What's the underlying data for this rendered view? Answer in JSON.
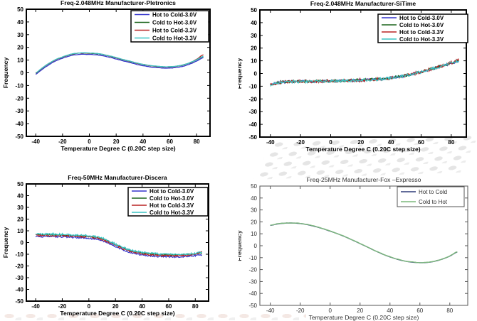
{
  "chart_data": [
    {
      "type": "line",
      "title": "Freq-2.048MHz  Manufacturer-Pletronics",
      "xlabel": "Temperature Degree C (0.20C step size)",
      "ylabel": "Frequency",
      "xlim": [
        -47,
        90
      ],
      "ylim": [
        -50,
        50
      ],
      "xticks": [
        -40,
        -20,
        0,
        20,
        40,
        60,
        80
      ],
      "yticks": [
        -50,
        -40,
        -30,
        -20,
        -10,
        0,
        10,
        20,
        30,
        40,
        50
      ],
      "grid": false,
      "legend_position": "upper-right-inside",
      "style": {
        "axis_color": "#000000",
        "axis_width": 2,
        "text_color": "#000000",
        "bold": true,
        "line_width": 1.3,
        "sample_step": 1,
        "legend_border": 1.5
      },
      "x": [
        -40,
        -35,
        -30,
        -25,
        -20,
        -15,
        -10,
        -5,
        0,
        5,
        10,
        15,
        20,
        25,
        30,
        35,
        40,
        45,
        50,
        55,
        60,
        65,
        70,
        75,
        80,
        85
      ],
      "series": [
        {
          "name": "Hot to Cold-3.0V",
          "color": "#3434cc",
          "noise": 0.12,
          "y": [
            -1.1,
            2.9,
            6.4,
            9.4,
            11.4,
            13.2,
            14.2,
            14.6,
            14.4,
            14.2,
            13.4,
            12.2,
            10.9,
            9.4,
            8.1,
            6.7,
            5.6,
            4.7,
            4.1,
            3.7,
            3.7,
            4.2,
            5.2,
            6.9,
            9.2,
            11.9
          ]
        },
        {
          "name": "Cold to Hot-3.0V",
          "color": "#1e661e",
          "noise": 0.12,
          "y": [
            -0.2,
            3.8,
            7.3,
            10.3,
            12.3,
            14.1,
            15.1,
            15.5,
            15.3,
            15.1,
            14.3,
            13.1,
            11.8,
            10.3,
            9.0,
            7.6,
            6.5,
            5.6,
            5.0,
            4.6,
            4.6,
            5.1,
            6.1,
            7.8,
            10.1,
            12.8
          ]
        },
        {
          "name": "Hot to Cold-3.3V",
          "color": "#b82222",
          "noise": 0.12,
          "y": [
            -0.1,
            3.9,
            7.4,
            10.4,
            12.4,
            14.2,
            15.2,
            15.6,
            15.4,
            15.2,
            14.4,
            13.2,
            11.9,
            10.4,
            9.1,
            7.7,
            6.6,
            5.7,
            5.1,
            4.7,
            4.7,
            5.2,
            6.2,
            7.9,
            10.6,
            14.2
          ]
        },
        {
          "name": "Cold to Hot-3.3V",
          "color": "#38c4c4",
          "noise": 0.12,
          "y": [
            0.0,
            4.0,
            7.5,
            10.5,
            12.5,
            14.3,
            15.3,
            15.7,
            15.5,
            15.3,
            14.5,
            13.3,
            12.0,
            10.5,
            9.2,
            7.8,
            6.7,
            5.8,
            5.2,
            4.8,
            4.8,
            5.3,
            6.3,
            8.0,
            10.3,
            13.0
          ]
        }
      ]
    },
    {
      "type": "line",
      "title": "Freq-2.048MHz  Manufacturer-SiTime",
      "xlabel": "Temperature Degree C (0.20C step size)",
      "ylabel": "Frequency",
      "xlim": [
        -47,
        90
      ],
      "ylim": [
        -50,
        50
      ],
      "xticks": [
        -40,
        -20,
        0,
        20,
        40,
        60,
        80
      ],
      "yticks": [
        -50,
        -40,
        -30,
        -20,
        -10,
        0,
        10,
        20,
        30,
        40,
        50
      ],
      "grid": false,
      "legend_position": "upper-right-inside",
      "style": {
        "axis_color": "#000000",
        "axis_width": 2,
        "text_color": "#000000",
        "bold": true,
        "line_width": 1.2,
        "sample_step": 0.5,
        "legend_border": 1.5
      },
      "x": [
        -40,
        -35,
        -30,
        -25,
        -20,
        -15,
        -10,
        -5,
        0,
        5,
        10,
        15,
        20,
        25,
        30,
        35,
        40,
        45,
        50,
        55,
        60,
        65,
        70,
        75,
        80,
        85
      ],
      "series": [
        {
          "name": "Hot to Cold-3.0V",
          "color": "#3434cc",
          "noise": 1.0,
          "y": [
            -9.0,
            -7.2,
            -6.6,
            -6.4,
            -6.3,
            -6.2,
            -6.1,
            -6.0,
            -5.9,
            -5.7,
            -5.6,
            -5.4,
            -5.2,
            -4.9,
            -4.6,
            -4.2,
            -3.5,
            -2.6,
            -1.5,
            -0.2,
            1.3,
            2.9,
            4.6,
            6.3,
            8.2,
            9.8
          ]
        },
        {
          "name": "Cold to Hot-3.0V",
          "color": "#1e661e",
          "noise": 1.0,
          "y": [
            -8.9,
            -7.1,
            -6.5,
            -6.3,
            -6.2,
            -6.1,
            -6.0,
            -5.9,
            -5.8,
            -5.6,
            -5.5,
            -5.3,
            -5.1,
            -4.8,
            -4.5,
            -4.1,
            -3.4,
            -2.5,
            -1.4,
            -0.1,
            1.4,
            3.0,
            4.7,
            6.4,
            8.3,
            9.9
          ]
        },
        {
          "name": "Hot to Cold-3.3V",
          "color": "#b82222",
          "noise": 1.2,
          "y": [
            -9.0,
            -7.2,
            -6.6,
            -6.4,
            -6.3,
            -6.2,
            -6.1,
            -6.0,
            -5.9,
            -5.7,
            -5.6,
            -5.4,
            -5.2,
            -4.9,
            -4.6,
            -4.2,
            -3.5,
            -2.6,
            -1.5,
            -0.2,
            1.3,
            2.9,
            4.6,
            6.3,
            8.5,
            10.4
          ]
        },
        {
          "name": "Cold to Hot-3.3V",
          "color": "#38c4c4",
          "noise": 1.1,
          "y": [
            -9.1,
            -7.3,
            -6.7,
            -6.5,
            -6.4,
            -6.3,
            -6.2,
            -6.1,
            -6.0,
            -5.8,
            -5.7,
            -5.5,
            -5.3,
            -5.0,
            -4.7,
            -4.3,
            -3.6,
            -2.7,
            -1.6,
            -0.3,
            1.2,
            2.8,
            4.5,
            6.2,
            8.2,
            9.6
          ]
        }
      ]
    },
    {
      "type": "line",
      "title": "Freq-50MHz  Manufacturer-Discera",
      "xlabel": "Temperature Degree C (0.20C step size)",
      "ylabel": "Frequency",
      "xlim": [
        -47,
        90
      ],
      "ylim": [
        -50,
        50
      ],
      "xticks": [
        -40,
        -20,
        0,
        20,
        40,
        60,
        80
      ],
      "yticks": [
        -50,
        -40,
        -30,
        -20,
        -10,
        0,
        10,
        20,
        30,
        40,
        50
      ],
      "grid": false,
      "legend_position": "upper-right-inside",
      "style": {
        "axis_color": "#000000",
        "axis_width": 2,
        "text_color": "#000000",
        "bold": true,
        "line_width": 1.2,
        "sample_step": 0.5,
        "legend_border": 1.5
      },
      "x": [
        -40,
        -35,
        -30,
        -25,
        -20,
        -15,
        -10,
        -5,
        0,
        5,
        10,
        15,
        20,
        25,
        30,
        35,
        40,
        45,
        50,
        55,
        60,
        65,
        70,
        75,
        80,
        85
      ],
      "series": [
        {
          "name": "Hot to Cold-3.0V",
          "color": "#3434cc",
          "noise": 0.6,
          "y": [
            5.2,
            5.1,
            5.0,
            5.0,
            4.8,
            4.6,
            4.3,
            4.0,
            3.6,
            3.0,
            1.6,
            -0.7,
            -3.4,
            -6.0,
            -8.0,
            -9.5,
            -10.5,
            -11.2,
            -11.7,
            -12.0,
            -12.2,
            -12.2,
            -12.0,
            -11.7,
            -11.2,
            -10.4
          ]
        },
        {
          "name": "Cold to Hot-3.0V",
          "color": "#1e661e",
          "noise": 0.5,
          "y": [
            6.8,
            6.7,
            6.6,
            6.6,
            6.4,
            6.2,
            5.9,
            5.6,
            5.2,
            4.6,
            3.2,
            0.9,
            -1.8,
            -4.4,
            -6.4,
            -7.9,
            -8.9,
            -9.6,
            -10.1,
            -10.4,
            -10.6,
            -10.6,
            -10.4,
            -10.1,
            -9.6,
            -8.8
          ]
        },
        {
          "name": "Hot to Cold-3.3V",
          "color": "#b82222",
          "noise": 0.7,
          "y": [
            6.2,
            6.1,
            6.0,
            6.0,
            5.8,
            5.6,
            5.3,
            5.0,
            4.6,
            4.0,
            2.6,
            0.3,
            -2.4,
            -5.0,
            -7.0,
            -8.5,
            -9.5,
            -10.2,
            -10.7,
            -11.0,
            -11.2,
            -11.2,
            -11.0,
            -10.7,
            -10.0,
            -7.8
          ]
        },
        {
          "name": "Cold to Hot-3.3V",
          "color": "#38c4c4",
          "noise": 0.8,
          "y": [
            7.3,
            7.2,
            7.1,
            7.1,
            6.9,
            6.7,
            6.4,
            6.1,
            5.7,
            5.1,
            3.7,
            1.4,
            -1.3,
            -3.9,
            -5.9,
            -7.4,
            -8.4,
            -9.1,
            -9.6,
            -9.9,
            -10.1,
            -10.1,
            -9.9,
            -9.6,
            -9.1,
            -8.3
          ]
        }
      ]
    },
    {
      "type": "line",
      "title": "Freq-25MHz  Manufacturer-Fox –Expresso",
      "xlabel": "Temperature Degree C (0.20C step size)",
      "ylabel": "Frequency",
      "xlim": [
        -47,
        92
      ],
      "ylim": [
        -50,
        50
      ],
      "xticks": [
        -40,
        -20,
        0,
        20,
        40,
        60,
        80
      ],
      "yticks": [
        -50,
        -40,
        -30,
        -20,
        -10,
        0,
        10,
        20,
        30,
        40,
        50
      ],
      "grid": false,
      "legend_position": "upper-right-inside",
      "style": {
        "axis_color": "#555555",
        "axis_width": 1,
        "text_color": "#333333",
        "bold": false,
        "line_width": 1.4,
        "sample_step": 1,
        "legend_border": 1
      },
      "x": [
        -40,
        -35,
        -30,
        -25,
        -20,
        -15,
        -10,
        -5,
        0,
        5,
        10,
        15,
        20,
        25,
        30,
        35,
        40,
        45,
        50,
        55,
        60,
        65,
        70,
        75,
        80,
        85
      ],
      "series": [
        {
          "name": "Hot to Cold",
          "color": "#2e3c78",
          "noise": 0,
          "y": [
            17.0,
            18.3,
            18.9,
            19.0,
            18.6,
            17.6,
            16.1,
            14.3,
            12.2,
            10.0,
            7.5,
            4.7,
            1.8,
            -1.2,
            -4.2,
            -7.0,
            -9.4,
            -11.4,
            -12.9,
            -13.8,
            -14.2,
            -14.0,
            -13.0,
            -11.2,
            -8.7,
            -5.3
          ]
        },
        {
          "name": "Cold to Hot",
          "color": "#7cb87c",
          "noise": 0.18,
          "y": [
            17.1,
            18.4,
            19.0,
            19.1,
            18.7,
            17.7,
            16.2,
            14.4,
            12.3,
            10.1,
            7.6,
            4.8,
            1.9,
            -1.1,
            -4.1,
            -6.9,
            -9.3,
            -11.3,
            -12.8,
            -13.7,
            -14.1,
            -13.9,
            -12.9,
            -11.1,
            -8.6,
            -5.2
          ]
        }
      ]
    }
  ]
}
